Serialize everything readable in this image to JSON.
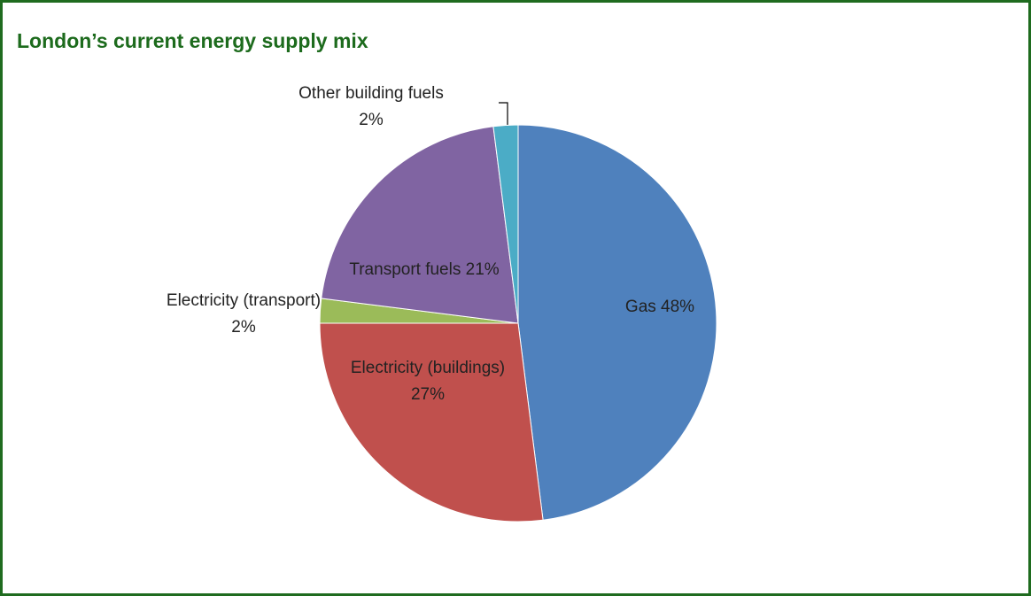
{
  "chart_data": {
    "type": "pie",
    "title": "London’s current energy supply mix",
    "values": [
      48,
      27,
      2,
      21,
      2
    ],
    "value_labels": [
      "Gas 48%",
      "Electricity (buildings) 27%",
      "Electricity (transport) 2%",
      "Transport fuels 21%",
      "Other building fuels 2%"
    ],
    "colors": [
      "#4f81bd",
      "#c0504d",
      "#9bbb59",
      "#8064a2",
      "#4bacc6"
    ]
  }
}
